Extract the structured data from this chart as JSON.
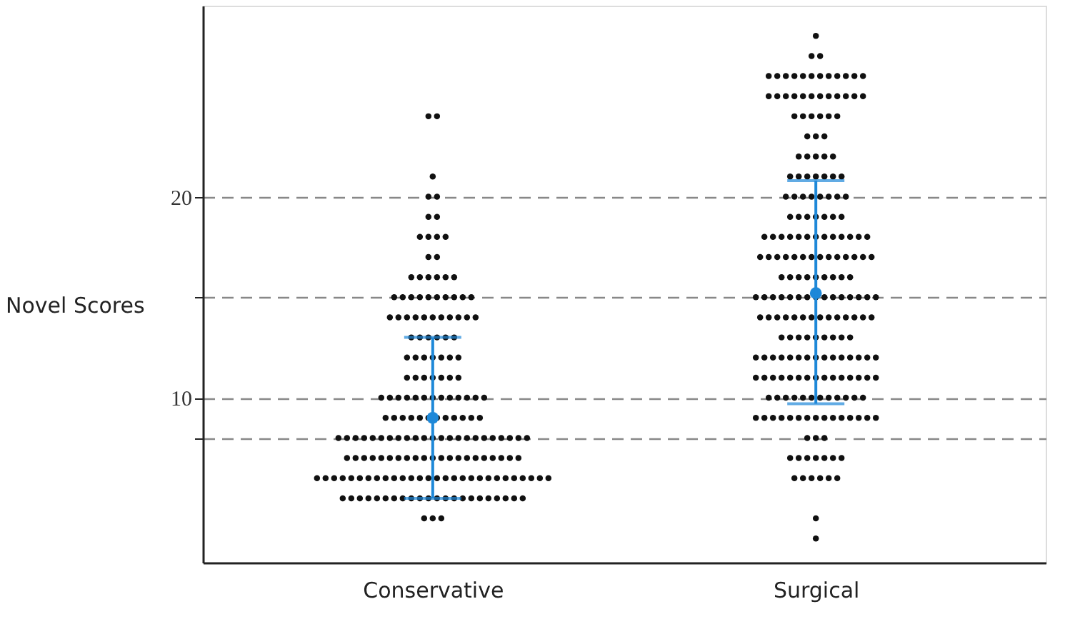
{
  "chart_data": {
    "type": "scatter",
    "ylabel": "Novel Scores",
    "categories": [
      "Conservative",
      "Surgical"
    ],
    "ylim": [
      1.8,
      29.5
    ],
    "yticks": [
      {
        "value": 8,
        "label": null
      },
      10,
      {
        "value": 15,
        "label": null
      },
      20
    ],
    "grid": "y",
    "marker": "circle",
    "series": [
      {
        "color": "#111111",
        "x": [
          "Conservative",
          "Conservative",
          "Conservative",
          "Conservative",
          "Conservative",
          "Conservative",
          "Conservative",
          "Conservative",
          "Conservative",
          "Conservative",
          "Conservative",
          "Conservative",
          "Conservative",
          "Conservative",
          "Conservative",
          "Conservative",
          "Conservative",
          "Conservative",
          "Conservative",
          "Conservative",
          "Conservative",
          "Conservative",
          "Conservative",
          "Conservative",
          "Conservative",
          "Conservative",
          "Conservative",
          "Conservative",
          "Conservative",
          "Conservative",
          "Conservative",
          "Conservative",
          "Conservative",
          "Conservative",
          "Conservative",
          "Conservative",
          "Conservative",
          "Conservative",
          "Conservative",
          "Conservative",
          "Conservative",
          "Conservative",
          "Conservative",
          "Conservative",
          "Conservative",
          "Conservative",
          "Conservative",
          "Conservative",
          "Conservative",
          "Conservative",
          "Conservative",
          "Conservative",
          "Conservative",
          "Conservative",
          "Conservative",
          "Conservative",
          "Conservative",
          "Conservative",
          "Conservative",
          "Conservative",
          "Conservative",
          "Conservative",
          "Conservative",
          "Conservative",
          "Conservative",
          "Conservative",
          "Conservative",
          "Conservative",
          "Conservative",
          "Conservative",
          "Conservative",
          "Conservative",
          "Conservative",
          "Conservative",
          "Conservative",
          "Conservative",
          "Conservative",
          "Conservative",
          "Conservative",
          "Conservative",
          "Conservative",
          "Conservative",
          "Conservative",
          "Conservative",
          "Conservative",
          "Conservative",
          "Conservative",
          "Conservative",
          "Conservative",
          "Conservative",
          "Conservative",
          "Conservative",
          "Conservative",
          "Conservative",
          "Conservative",
          "Conservative",
          "Conservative",
          "Conservative",
          "Conservative",
          "Conservative",
          "Conservative",
          "Conservative",
          "Conservative",
          "Conservative",
          "Conservative",
          "Conservative",
          "Conservative",
          "Conservative",
          "Conservative",
          "Conservative",
          "Conservative",
          "Conservative",
          "Conservative",
          "Conservative",
          "Conservative",
          "Conservative",
          "Conservative",
          "Conservative",
          "Conservative",
          "Conservative",
          "Conservative",
          "Conservative",
          "Conservative",
          "Conservative",
          "Conservative",
          "Conservative",
          "Conservative",
          "Conservative",
          "Conservative",
          "Conservative",
          "Conservative",
          "Conservative",
          "Conservative",
          "Conservative",
          "Conservative",
          "Conservative",
          "Conservative",
          "Conservative",
          "Conservative",
          "Conservative",
          "Conservative",
          "Conservative",
          "Conservative",
          "Conservative",
          "Conservative",
          "Conservative",
          "Conservative",
          "Conservative",
          "Conservative",
          "Conservative",
          "Conservative",
          "Conservative",
          "Conservative",
          "Conservative",
          "Conservative",
          "Conservative",
          "Conservative",
          "Conservative",
          "Conservative",
          "Conservative",
          "Conservative",
          "Conservative",
          "Conservative",
          "Conservative",
          "Conservative",
          "Conservative",
          "Conservative",
          "Conservative",
          "Conservative",
          "Conservative",
          "Conservative",
          "Conservative",
          "Conservative",
          "Conservative",
          "Conservative",
          "Conservative",
          "Conservative",
          "Conservative",
          "Conservative",
          "Conservative",
          "Conservative",
          "Conservative"
        ],
        "values": [
          24,
          24,
          21,
          20,
          20,
          19,
          19,
          18,
          18,
          18,
          18,
          17,
          17,
          16,
          16,
          16,
          16,
          16,
          16,
          15,
          15,
          15,
          15,
          15,
          15,
          15,
          15,
          15,
          15,
          14,
          14,
          14,
          14,
          14,
          14,
          14,
          14,
          14,
          14,
          14,
          13,
          13,
          13,
          13,
          13,
          13,
          12,
          12,
          12,
          12,
          12,
          12,
          12,
          11,
          11,
          11,
          11,
          11,
          11,
          11,
          10,
          10,
          10,
          10,
          10,
          10,
          10,
          10,
          10,
          10,
          10,
          10,
          10,
          9,
          9,
          9,
          9,
          9,
          9,
          9,
          9,
          9,
          9,
          9,
          9,
          8,
          8,
          8,
          8,
          8,
          8,
          8,
          8,
          8,
          8,
          8,
          8,
          8,
          8,
          8,
          8,
          8,
          8,
          8,
          8,
          8,
          8,
          8,
          7,
          7,
          7,
          7,
          7,
          7,
          7,
          7,
          7,
          7,
          7,
          7,
          7,
          7,
          7,
          7,
          7,
          7,
          7,
          7,
          7,
          6,
          6,
          6,
          6,
          6,
          6,
          6,
          6,
          6,
          6,
          6,
          6,
          6,
          6,
          6,
          6,
          6,
          6,
          6,
          6,
          6,
          6,
          6,
          6,
          6,
          6,
          6,
          6,
          5,
          5,
          5,
          5,
          5,
          5,
          5,
          5,
          5,
          5,
          5,
          5,
          5,
          5,
          5,
          5,
          5,
          5,
          5,
          5,
          5,
          5,
          4,
          4,
          4
        ]
      },
      {
        "color": "#111111",
        "x": [
          "Surgical",
          "Surgical",
          "Surgical",
          "Surgical",
          "Surgical",
          "Surgical",
          "Surgical",
          "Surgical",
          "Surgical",
          "Surgical",
          "Surgical",
          "Surgical",
          "Surgical",
          "Surgical",
          "Surgical",
          "Surgical",
          "Surgical",
          "Surgical",
          "Surgical",
          "Surgical",
          "Surgical",
          "Surgical",
          "Surgical",
          "Surgical",
          "Surgical",
          "Surgical",
          "Surgical",
          "Surgical",
          "Surgical",
          "Surgical",
          "Surgical",
          "Surgical",
          "Surgical",
          "Surgical",
          "Surgical",
          "Surgical",
          "Surgical",
          "Surgical",
          "Surgical",
          "Surgical",
          "Surgical",
          "Surgical",
          "Surgical",
          "Surgical",
          "Surgical",
          "Surgical",
          "Surgical",
          "Surgical",
          "Surgical",
          "Surgical",
          "Surgical",
          "Surgical",
          "Surgical",
          "Surgical",
          "Surgical",
          "Surgical",
          "Surgical",
          "Surgical",
          "Surgical",
          "Surgical",
          "Surgical",
          "Surgical",
          "Surgical",
          "Surgical",
          "Surgical",
          "Surgical",
          "Surgical",
          "Surgical",
          "Surgical",
          "Surgical",
          "Surgical",
          "Surgical",
          "Surgical",
          "Surgical",
          "Surgical",
          "Surgical",
          "Surgical",
          "Surgical",
          "Surgical",
          "Surgical",
          "Surgical",
          "Surgical",
          "Surgical",
          "Surgical",
          "Surgical",
          "Surgical",
          "Surgical",
          "Surgical",
          "Surgical",
          "Surgical",
          "Surgical",
          "Surgical",
          "Surgical",
          "Surgical",
          "Surgical",
          "Surgical",
          "Surgical",
          "Surgical",
          "Surgical",
          "Surgical",
          "Surgical",
          "Surgical",
          "Surgical",
          "Surgical",
          "Surgical",
          "Surgical",
          "Surgical",
          "Surgical",
          "Surgical",
          "Surgical",
          "Surgical",
          "Surgical",
          "Surgical",
          "Surgical",
          "Surgical",
          "Surgical",
          "Surgical",
          "Surgical",
          "Surgical",
          "Surgical",
          "Surgical",
          "Surgical",
          "Surgical",
          "Surgical",
          "Surgical",
          "Surgical",
          "Surgical",
          "Surgical",
          "Surgical",
          "Surgical",
          "Surgical",
          "Surgical",
          "Surgical",
          "Surgical",
          "Surgical",
          "Surgical",
          "Surgical",
          "Surgical",
          "Surgical",
          "Surgical",
          "Surgical",
          "Surgical",
          "Surgical",
          "Surgical",
          "Surgical",
          "Surgical",
          "Surgical",
          "Surgical",
          "Surgical",
          "Surgical",
          "Surgical",
          "Surgical",
          "Surgical",
          "Surgical",
          "Surgical",
          "Surgical",
          "Surgical",
          "Surgical",
          "Surgical",
          "Surgical",
          "Surgical",
          "Surgical",
          "Surgical",
          "Surgical",
          "Surgical",
          "Surgical",
          "Surgical",
          "Surgical",
          "Surgical",
          "Surgical",
          "Surgical",
          "Surgical",
          "Surgical",
          "Surgical",
          "Surgical",
          "Surgical",
          "Surgical",
          "Surgical",
          "Surgical",
          "Surgical",
          "Surgical",
          "Surgical",
          "Surgical",
          "Surgical",
          "Surgical",
          "Surgical",
          "Surgical",
          "Surgical",
          "Surgical",
          "Surgical",
          "Surgical",
          "Surgical",
          "Surgical",
          "Surgical",
          "Surgical",
          "Surgical",
          "Surgical",
          "Surgical",
          "Surgical",
          "Surgical",
          "Surgical",
          "Surgical",
          "Surgical",
          "Surgical",
          "Surgical",
          "Surgical",
          "Surgical",
          "Surgical",
          "Surgical",
          "Surgical",
          "Surgical",
          "Surgical"
        ],
        "values": [
          28,
          27,
          27,
          26,
          26,
          26,
          26,
          26,
          26,
          26,
          26,
          26,
          26,
          26,
          26,
          25,
          25,
          25,
          25,
          25,
          25,
          25,
          25,
          25,
          25,
          25,
          25,
          24,
          24,
          24,
          24,
          24,
          24,
          23,
          23,
          23,
          22,
          22,
          22,
          22,
          22,
          21,
          21,
          21,
          21,
          21,
          21,
          21,
          20,
          20,
          20,
          20,
          20,
          20,
          20,
          20,
          19,
          19,
          19,
          19,
          19,
          19,
          19,
          18,
          18,
          18,
          18,
          18,
          18,
          18,
          18,
          18,
          18,
          18,
          18,
          18,
          17,
          17,
          17,
          17,
          17,
          17,
          17,
          17,
          17,
          17,
          17,
          17,
          17,
          17,
          16,
          16,
          16,
          16,
          16,
          16,
          16,
          16,
          16,
          15,
          15,
          15,
          15,
          15,
          15,
          15,
          15,
          15,
          15,
          15,
          15,
          15,
          15,
          15,
          14,
          14,
          14,
          14,
          14,
          14,
          14,
          14,
          14,
          14,
          14,
          14,
          14,
          14,
          13,
          13,
          13,
          13,
          13,
          13,
          13,
          13,
          13,
          12,
          12,
          12,
          12,
          12,
          12,
          12,
          12,
          12,
          12,
          12,
          12,
          12,
          12,
          12,
          11,
          11,
          11,
          11,
          11,
          11,
          11,
          11,
          11,
          11,
          11,
          11,
          11,
          11,
          11,
          10,
          10,
          10,
          10,
          10,
          10,
          10,
          10,
          10,
          10,
          10,
          10,
          9,
          9,
          9,
          9,
          9,
          9,
          9,
          9,
          9,
          9,
          9,
          9,
          9,
          9,
          9,
          8,
          8,
          8,
          7,
          7,
          7,
          7,
          7,
          7,
          7,
          6,
          6,
          6,
          6,
          6,
          6,
          4,
          3
        ]
      },
      {
        "color": "#1e88d8",
        "x": [
          "Conservative",
          "Surgical"
        ],
        "values": [
          9,
          15.2
        ],
        "errors": [
          [
            5,
            13
          ],
          [
            9.7,
            20.8
          ]
        ]
      }
    ]
  }
}
